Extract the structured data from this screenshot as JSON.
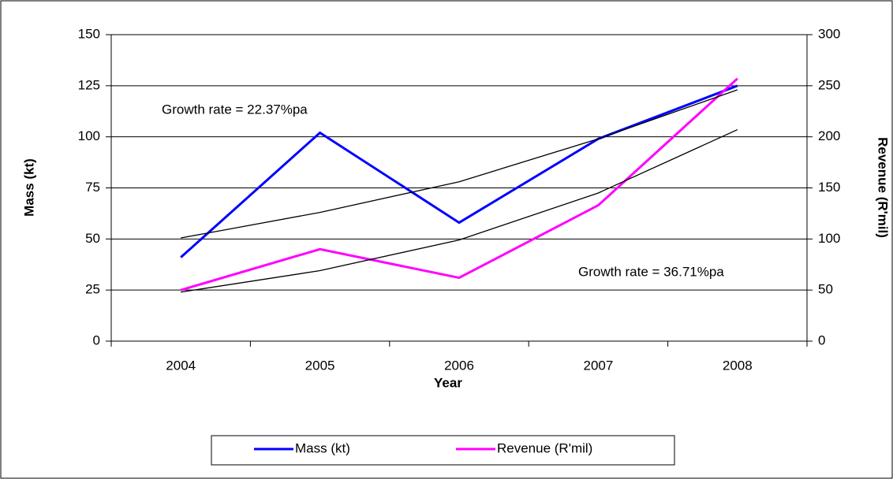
{
  "chart_data": {
    "type": "line",
    "categories": [
      "2004",
      "2005",
      "2006",
      "2007",
      "2008"
    ],
    "series": [
      {
        "name": "Mass (kt)",
        "color": "#0000ff",
        "values": [
          41,
          102,
          58,
          99,
          125
        ]
      },
      {
        "name": "Revenue (R'mil)",
        "color": "#ff00ff",
        "axis": "y2",
        "values": [
          50,
          90,
          62,
          133,
          257
        ]
      },
      {
        "color": "#000000",
        "values": [
          50.5,
          63,
          78,
          99,
          123
        ]
      },
      {
        "color": "#000000",
        "axis": "y2",
        "values": [
          48,
          69,
          99,
          145,
          207
        ]
      }
    ],
    "xlabel": "Year",
    "ylabel": "Mass (kt)",
    "y2label": "Revenue (R'mil)",
    "annotations": [
      "Growth rate = 22.37%pa",
      "Growth rate = 36.71%pa"
    ],
    "ylim": [
      0,
      150
    ],
    "yticks": [
      0,
      25,
      50,
      75,
      100,
      125,
      150
    ],
    "y2lim": [
      0,
      300
    ],
    "y2ticks": [
      0,
      50,
      100,
      150,
      200,
      250,
      300
    ],
    "grid": true,
    "legend": "bottom"
  }
}
